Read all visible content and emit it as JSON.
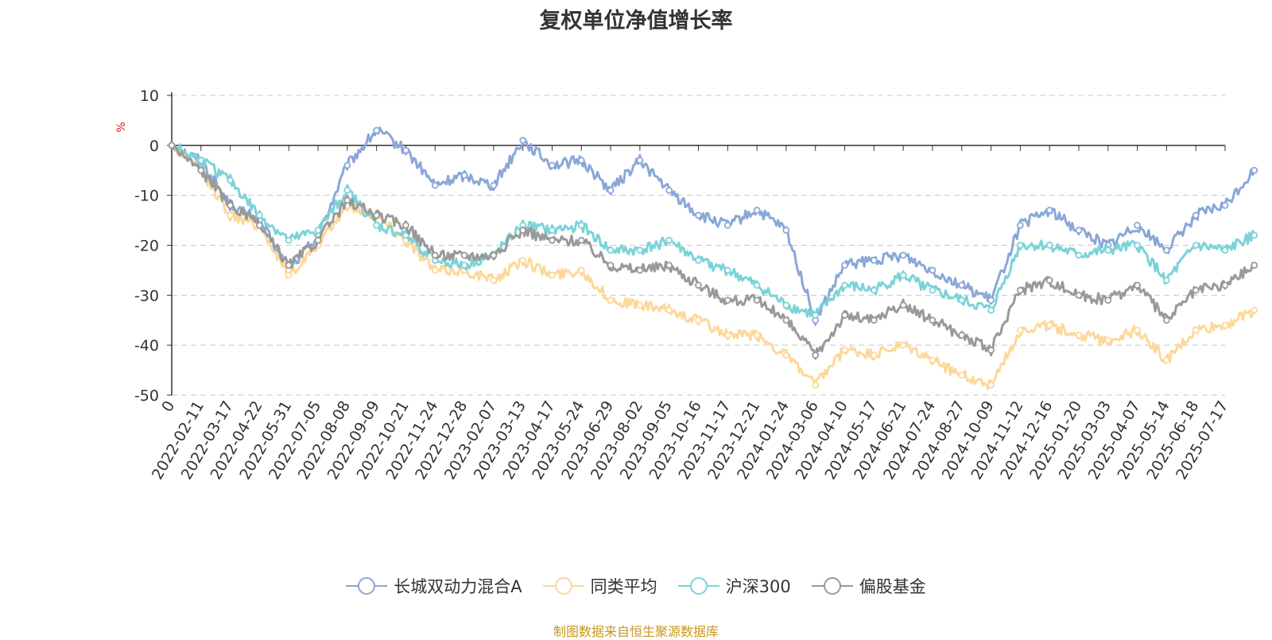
{
  "chart_data": {
    "type": "line",
    "title": "复权单位净值增长率",
    "ylabel": "%",
    "ylim": [
      -50,
      10
    ],
    "yticks": [
      10,
      0,
      -10,
      -20,
      -30,
      -40,
      -50
    ],
    "grid": true,
    "legend_position": "bottom",
    "x_tick_labels": [
      "0",
      "2022-02-11",
      "2022-03-17",
      "2022-04-22",
      "2022-05-31",
      "2022-07-05",
      "2022-08-08",
      "2022-09-09",
      "2022-10-21",
      "2022-11-24",
      "2022-12-28",
      "2023-02-07",
      "2023-03-13",
      "2023-04-17",
      "2023-05-24",
      "2023-06-29",
      "2023-08-02",
      "2023-09-05",
      "2023-10-16",
      "2023-11-17",
      "2023-12-21",
      "2024-01-24",
      "2024-03-06",
      "2024-04-10",
      "2024-05-17",
      "2024-06-21",
      "2024-07-24",
      "2024-08-27",
      "2024-10-09",
      "2024-11-12",
      "2024-12-16",
      "2025-01-20",
      "2025-03-03",
      "2025-04-07",
      "2025-05-14",
      "2025-06-18",
      "2025-07-17"
    ],
    "series": [
      {
        "name": "长城双动力混合A",
        "color": "#8aa7d8",
        "values": [
          0,
          -3,
          -12,
          -15,
          -25,
          -18,
          -4,
          3,
          -1,
          -8,
          -6,
          -8,
          1,
          -4,
          -3,
          -9,
          -3,
          -9,
          -14,
          -16,
          -13,
          -17,
          -35,
          -24,
          -23,
          -22,
          -25,
          -28,
          -31,
          -16,
          -13,
          -17,
          -20,
          -16,
          -21,
          -14,
          -12,
          -5
        ]
      },
      {
        "name": "同类平均",
        "color": "#fcd89a",
        "values": [
          0,
          -5,
          -14,
          -16,
          -26,
          -20,
          -12,
          -14,
          -19,
          -25,
          -25,
          -27,
          -23,
          -26,
          -25,
          -31,
          -32,
          -33,
          -35,
          -38,
          -38,
          -42,
          -48,
          -41,
          -42,
          -40,
          -43,
          -46,
          -48,
          -37,
          -36,
          -38,
          -39,
          -37,
          -43,
          -37,
          -36,
          -33
        ]
      },
      {
        "name": "沪深300",
        "color": "#7bd3d8",
        "values": [
          0,
          -3,
          -7,
          -14,
          -19,
          -17,
          -9,
          -16,
          -18,
          -23,
          -24,
          -22,
          -16,
          -17,
          -16,
          -21,
          -21,
          -19,
          -23,
          -25,
          -28,
          -32,
          -34,
          -28,
          -29,
          -26,
          -29,
          -31,
          -33,
          -20,
          -20,
          -22,
          -21,
          -20,
          -27,
          -20,
          -21,
          -18
        ]
      },
      {
        "name": "偏股基金",
        "color": "#999999",
        "values": [
          0,
          -5,
          -12,
          -16,
          -24,
          -19,
          -11,
          -14,
          -16,
          -22,
          -22,
          -22,
          -17,
          -19,
          -19,
          -24,
          -25,
          -24,
          -28,
          -31,
          -31,
          -35,
          -42,
          -34,
          -35,
          -32,
          -35,
          -38,
          -41,
          -29,
          -27,
          -30,
          -31,
          -28,
          -35,
          -29,
          -28,
          -24
        ]
      }
    ]
  },
  "source_note": "制图数据来自恒生聚源数据库"
}
